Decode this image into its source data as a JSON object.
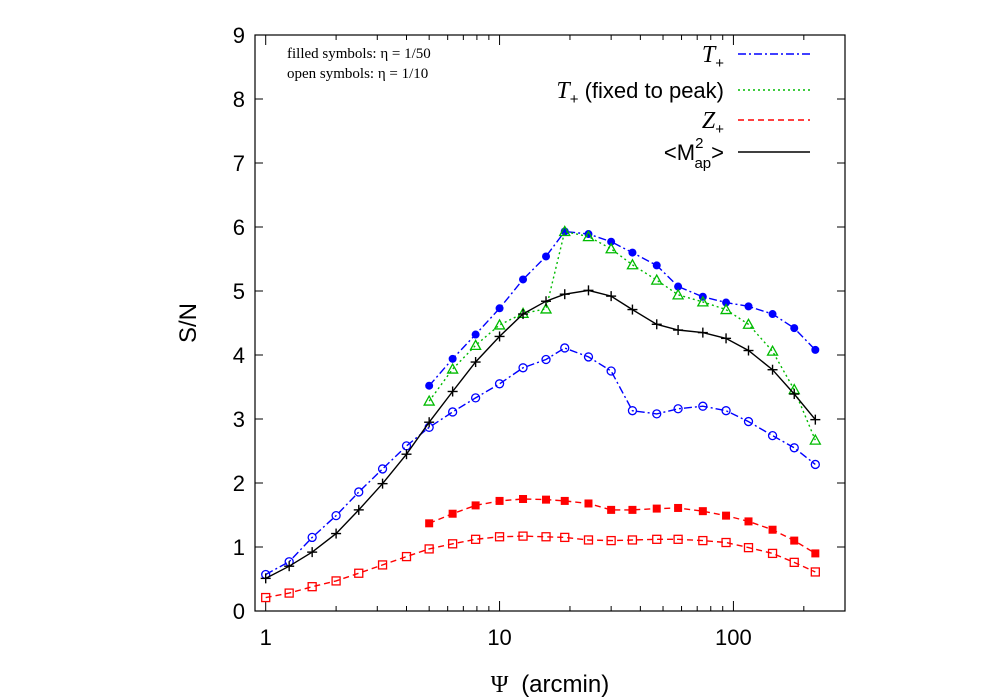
{
  "chart_data": {
    "type": "line",
    "xscale": "log",
    "xlim": [
      0.9,
      300
    ],
    "ylim": [
      0,
      9
    ],
    "xlabel_symbol": "Ψ",
    "xlabel_unit": "(arcmin)",
    "ylabel": "S/N",
    "x_ticks": [
      1,
      10,
      100
    ],
    "x_tick_labels": [
      "1",
      "10",
      "100"
    ],
    "y_ticks": [
      0,
      1,
      2,
      3,
      4,
      5,
      6,
      7,
      8,
      9
    ],
    "y_tick_labels": [
      "0",
      "1",
      "2",
      "3",
      "4",
      "5",
      "6",
      "7",
      "8",
      "9"
    ],
    "grid": false,
    "legend_position": "top-right",
    "notes": {
      "filled": "filled symbols: η = 1/50",
      "open": "open symbols:  η = 1/10"
    },
    "legend": [
      {
        "id": "tplus",
        "base": "T",
        "sub": "+",
        "suffix": "",
        "color": "#0000ff",
        "dash": "8,3,2,3"
      },
      {
        "id": "tplus_peak",
        "base": "T",
        "sub": "+",
        "suffix": " (fixed to peak)",
        "color": "#00bb00",
        "dash": "2,3"
      },
      {
        "id": "zplus",
        "base": "Z",
        "sub": "+",
        "suffix": "",
        "color": "#ff0000",
        "dash": "6,4"
      },
      {
        "id": "map2",
        "base": "<M",
        "sub": "ap",
        "sup": "2",
        "suffix": ">",
        "color": "#000000",
        "dash": ""
      }
    ],
    "series": [
      {
        "name": "T+",
        "eta": "1/50",
        "marker": "filled-circle",
        "color": "#0000ff",
        "dash": "8,3,2,3",
        "points": [
          [
            5.0,
            3.52
          ],
          [
            6.3,
            3.94
          ],
          [
            7.9,
            4.32
          ],
          [
            10.0,
            4.73
          ],
          [
            12.6,
            5.18
          ],
          [
            15.8,
            5.54
          ],
          [
            19.0,
            5.93
          ],
          [
            24.0,
            5.89
          ],
          [
            30.0,
            5.77
          ],
          [
            37.0,
            5.6
          ],
          [
            47.0,
            5.4
          ],
          [
            58.0,
            5.07
          ],
          [
            74.0,
            4.91
          ],
          [
            93.0,
            4.82
          ],
          [
            116.0,
            4.76
          ],
          [
            147.0,
            4.64
          ],
          [
            182.0,
            4.42
          ],
          [
            224.0,
            4.08
          ]
        ]
      },
      {
        "name": "T+",
        "eta": "1/10",
        "marker": "open-circle",
        "color": "#0000ff",
        "dash": "8,3,2,3",
        "points": [
          [
            1.0,
            0.57
          ],
          [
            1.26,
            0.77
          ],
          [
            1.58,
            1.15
          ],
          [
            2.0,
            1.49
          ],
          [
            2.5,
            1.86
          ],
          [
            3.16,
            2.22
          ],
          [
            4.0,
            2.58
          ],
          [
            5.0,
            2.87
          ],
          [
            6.3,
            3.11
          ],
          [
            7.9,
            3.33
          ],
          [
            10.0,
            3.55
          ],
          [
            12.6,
            3.8
          ],
          [
            15.8,
            3.93
          ],
          [
            19.0,
            4.11
          ],
          [
            24.0,
            3.97
          ],
          [
            30.0,
            3.75
          ],
          [
            37.0,
            3.13
          ],
          [
            47.0,
            3.08
          ],
          [
            58.0,
            3.16
          ],
          [
            74.0,
            3.2
          ],
          [
            93.0,
            3.13
          ],
          [
            116.0,
            2.96
          ],
          [
            147.0,
            2.74
          ],
          [
            182.0,
            2.55
          ],
          [
            224.0,
            2.29
          ]
        ]
      },
      {
        "name": "T+ (fixed to peak)",
        "eta": "1/50",
        "marker": "open-triangle",
        "color": "#00bb00",
        "dash": "2,3",
        "points": [
          [
            5.0,
            3.28
          ],
          [
            6.3,
            3.78
          ],
          [
            7.9,
            4.15
          ],
          [
            10.0,
            4.47
          ],
          [
            12.6,
            4.65
          ],
          [
            15.8,
            4.72
          ],
          [
            19.0,
            5.93
          ],
          [
            24.0,
            5.85
          ],
          [
            30.0,
            5.66
          ],
          [
            37.0,
            5.41
          ],
          [
            47.0,
            5.17
          ],
          [
            58.0,
            4.94
          ],
          [
            74.0,
            4.83
          ],
          [
            93.0,
            4.71
          ],
          [
            116.0,
            4.48
          ],
          [
            147.0,
            4.06
          ],
          [
            182.0,
            3.46
          ],
          [
            224.0,
            2.67
          ]
        ]
      },
      {
        "name": "Z+",
        "eta": "1/50",
        "marker": "filled-square",
        "color": "#ff0000",
        "dash": "6,4",
        "points": [
          [
            5.0,
            1.37
          ],
          [
            6.3,
            1.52
          ],
          [
            7.9,
            1.65
          ],
          [
            10.0,
            1.72
          ],
          [
            12.6,
            1.75
          ],
          [
            15.8,
            1.74
          ],
          [
            19.0,
            1.72
          ],
          [
            24.0,
            1.68
          ],
          [
            30.0,
            1.58
          ],
          [
            37.0,
            1.58
          ],
          [
            47.0,
            1.6
          ],
          [
            58.0,
            1.61
          ],
          [
            74.0,
            1.56
          ],
          [
            93.0,
            1.49
          ],
          [
            116.0,
            1.4
          ],
          [
            147.0,
            1.27
          ],
          [
            182.0,
            1.1
          ],
          [
            224.0,
            0.9
          ]
        ]
      },
      {
        "name": "Z+",
        "eta": "1/10",
        "marker": "open-square",
        "color": "#ff0000",
        "dash": "6,4",
        "points": [
          [
            1.0,
            0.21
          ],
          [
            1.26,
            0.28
          ],
          [
            1.58,
            0.38
          ],
          [
            2.0,
            0.47
          ],
          [
            2.5,
            0.59
          ],
          [
            3.16,
            0.72
          ],
          [
            4.0,
            0.85
          ],
          [
            5.0,
            0.97
          ],
          [
            6.3,
            1.05
          ],
          [
            7.9,
            1.12
          ],
          [
            10.0,
            1.16
          ],
          [
            12.6,
            1.17
          ],
          [
            15.8,
            1.16
          ],
          [
            19.0,
            1.15
          ],
          [
            24.0,
            1.11
          ],
          [
            30.0,
            1.1
          ],
          [
            37.0,
            1.11
          ],
          [
            47.0,
            1.12
          ],
          [
            58.0,
            1.12
          ],
          [
            74.0,
            1.1
          ],
          [
            93.0,
            1.07
          ],
          [
            116.0,
            0.99
          ],
          [
            147.0,
            0.9
          ],
          [
            182.0,
            0.76
          ],
          [
            224.0,
            0.61
          ]
        ]
      },
      {
        "name": "<Map^2>",
        "eta": "",
        "marker": "plus",
        "color": "#000000",
        "dash": "",
        "points": [
          [
            1.0,
            0.51
          ],
          [
            1.26,
            0.7
          ],
          [
            1.58,
            0.92
          ],
          [
            2.0,
            1.21
          ],
          [
            2.5,
            1.58
          ],
          [
            3.16,
            1.99
          ],
          [
            4.0,
            2.45
          ],
          [
            5.0,
            2.95
          ],
          [
            6.3,
            3.43
          ],
          [
            7.9,
            3.89
          ],
          [
            10.0,
            4.29
          ],
          [
            12.6,
            4.64
          ],
          [
            15.8,
            4.84
          ],
          [
            19.0,
            4.95
          ],
          [
            24.0,
            5.01
          ],
          [
            30.0,
            4.92
          ],
          [
            37.0,
            4.71
          ],
          [
            47.0,
            4.48
          ],
          [
            58.0,
            4.39
          ],
          [
            74.0,
            4.35
          ],
          [
            93.0,
            4.26
          ],
          [
            116.0,
            4.07
          ],
          [
            147.0,
            3.77
          ],
          [
            182.0,
            3.39
          ],
          [
            224.0,
            2.99
          ]
        ]
      }
    ]
  }
}
